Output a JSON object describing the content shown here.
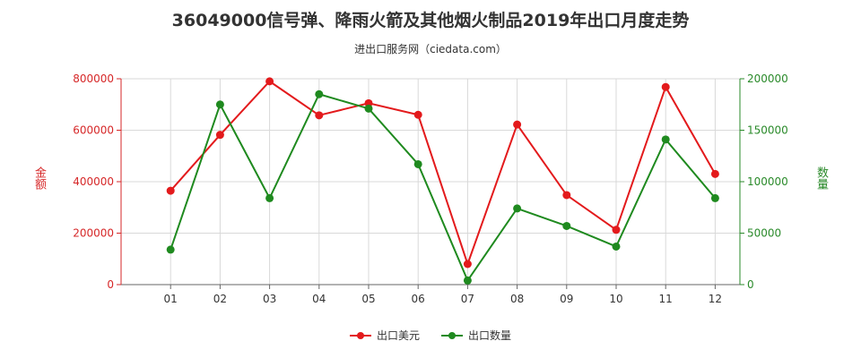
{
  "chart_data": {
    "type": "line",
    "title": "36049000信号弹、降雨火箭及其他烟火制品2019年出口月度走势",
    "subtitle": "进出口服务网（ciedata.com）",
    "categories": [
      "01",
      "02",
      "03",
      "04",
      "05",
      "06",
      "07",
      "08",
      "09",
      "10",
      "11",
      "12"
    ],
    "y_left": {
      "label": "金额",
      "ylim": [
        0,
        800000
      ],
      "ticks": [
        "0",
        "200000",
        "400000",
        "600000",
        "800000"
      ]
    },
    "y_right": {
      "label": "数量",
      "ylim": [
        0,
        200000
      ],
      "ticks": [
        "0",
        "50000",
        "100000",
        "150000",
        "200000"
      ]
    },
    "series": [
      {
        "name": "出口美元",
        "axis": "left",
        "color": "#e31a1c",
        "values": [
          365000,
          582000,
          790000,
          658000,
          705000,
          660000,
          80000,
          622000,
          348000,
          213000,
          768000,
          430000
        ]
      },
      {
        "name": "出口数量",
        "axis": "right",
        "color": "#1f8a1f",
        "values": [
          34000,
          175000,
          84000,
          185000,
          171000,
          117000,
          4000,
          74000,
          57000,
          37000,
          141000,
          84000
        ]
      }
    ],
    "grid": true,
    "legend": "bottom-center"
  }
}
